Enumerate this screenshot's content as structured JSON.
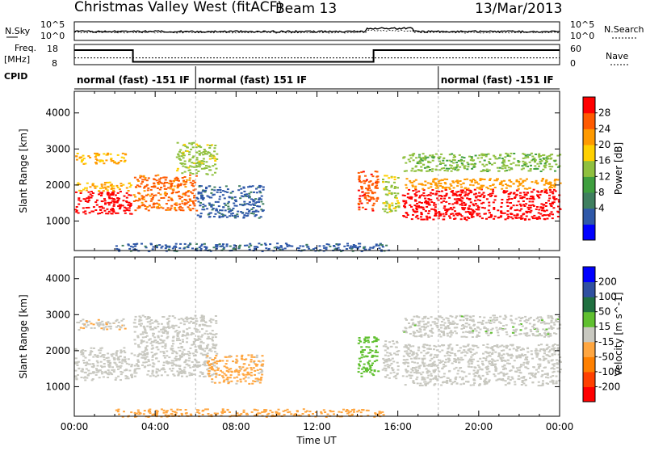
{
  "header": {
    "title": "Christmas Valley West (fitACF)",
    "beam": "Beam 13",
    "date": "13/Mar/2013"
  },
  "nsky_panel": {
    "left_label": "N.Sky",
    "right_label": "N.Search",
    "left_ticks": [
      "10^5",
      "10^0"
    ],
    "right_ticks": [
      "10^5",
      "10^0"
    ]
  },
  "freq_panel": {
    "left_label_1": "Freq.",
    "left_label_2": "[MHz]",
    "left_ticks": [
      "18",
      "8"
    ],
    "right_ticks": [
      "60",
      "0"
    ],
    "right_label": "Nave",
    "cpid_label": "CPID",
    "freq_steps": [
      {
        "t0": 0.0,
        "t1": 2.9,
        "mhz": 16.0
      },
      {
        "t0": 2.9,
        "t1": 14.8,
        "mhz": 10.2
      },
      {
        "t0": 14.8,
        "t1": 16.1,
        "mhz": 16.0
      },
      {
        "t0": 16.1,
        "t1": 24.0,
        "mhz": 16.0
      }
    ],
    "nave_level": 20
  },
  "cpid_segments": [
    {
      "label": "normal (fast) -151 IF",
      "t0": 0.0,
      "t1": 6.0
    },
    {
      "label": "normal (fast) 151 IF",
      "t0": 6.0,
      "t1": 18.0
    },
    {
      "label": "normal (fast) -151 IF",
      "t0": 18.0,
      "t1": 24.0
    }
  ],
  "chart_data": [
    {
      "type": "heatmap",
      "panel": "power",
      "ylabel": "Slant Range [km]",
      "xlabel": "Time UT",
      "xlim": [
        0,
        24
      ],
      "ylim": [
        180,
        4600
      ],
      "x_ticks": [
        "00:00",
        "04:00",
        "08:00",
        "12:00",
        "16:00",
        "20:00",
        "00:00"
      ],
      "y_ticks": [
        1000,
        2000,
        3000,
        4000
      ],
      "colorbar": {
        "label": "Power [dB]",
        "ticks": [
          "28",
          "24",
          "20",
          "16",
          "12",
          "8",
          "4"
        ],
        "range": [
          0,
          30
        ],
        "colors": [
          "#0000ff",
          "#2f58a8",
          "#3f7f5f",
          "#3f9f3f",
          "#8fc03f",
          "#ffd000",
          "#ff9a00",
          "#ff5a00",
          "#ff0000"
        ]
      },
      "regions": [
        {
          "t0": 0.0,
          "t1": 2.8,
          "r0": 1200,
          "r1": 1850,
          "level": 28
        },
        {
          "t0": 0.0,
          "t1": 2.8,
          "r0": 1850,
          "r1": 2100,
          "level": 20
        },
        {
          "t0": 2.9,
          "t1": 6.0,
          "r0": 1300,
          "r1": 2300,
          "level": 24
        },
        {
          "t0": 5.0,
          "t1": 7.0,
          "r0": 2300,
          "r1": 3200,
          "level": 16
        },
        {
          "t0": 0.0,
          "t1": 2.5,
          "r0": 2600,
          "r1": 2900,
          "level": 20
        },
        {
          "t0": 6.0,
          "t1": 9.3,
          "r0": 1100,
          "r1": 2000,
          "level": 6
        },
        {
          "t0": 14.0,
          "t1": 15.0,
          "r0": 1300,
          "r1": 2400,
          "level": 26
        },
        {
          "t0": 15.2,
          "t1": 16.0,
          "r0": 1250,
          "r1": 2300,
          "level": 16
        },
        {
          "t0": 16.2,
          "t1": 24.0,
          "r0": 1050,
          "r1": 1900,
          "level": 28
        },
        {
          "t0": 16.2,
          "t1": 24.0,
          "r0": 1900,
          "r1": 2200,
          "level": 22
        },
        {
          "t0": 16.2,
          "t1": 24.0,
          "r0": 2400,
          "r1": 2900,
          "level": 14
        },
        {
          "t0": 2.0,
          "t1": 15.5,
          "r0": 180,
          "r1": 400,
          "level": 6
        }
      ]
    },
    {
      "type": "heatmap",
      "panel": "velocity",
      "ylabel": "Slant Range [km]",
      "xlabel": "Time UT",
      "xlim": [
        0,
        24
      ],
      "ylim": [
        180,
        4600
      ],
      "x_ticks": [
        "00:00",
        "04:00",
        "08:00",
        "12:00",
        "16:00",
        "20:00",
        "00:00"
      ],
      "y_ticks": [
        1000,
        2000,
        3000,
        4000
      ],
      "colorbar": {
        "label": "Velocity [m s^-1]",
        "ticks": [
          "200",
          "100",
          "50",
          "15",
          "-15",
          "-50",
          "-100",
          "-200"
        ],
        "range": [
          -250,
          250
        ],
        "colors": [
          "#ff0000",
          "#ff4000",
          "#ff8000",
          "#ffa640",
          "#c8c8c0",
          "#60c030",
          "#207040",
          "#3050a0",
          "#0000ff"
        ]
      },
      "regions": [
        {
          "t0": 0.0,
          "t1": 2.8,
          "r0": 1200,
          "r1": 2100,
          "level": 0
        },
        {
          "t0": 2.9,
          "t1": 7.0,
          "r0": 1300,
          "r1": 3000,
          "level": 0
        },
        {
          "t0": 0.0,
          "t1": 2.5,
          "r0": 2600,
          "r1": 2900,
          "level": -20
        },
        {
          "t0": 6.5,
          "t1": 9.3,
          "r0": 1100,
          "r1": 1900,
          "level": -40
        },
        {
          "t0": 14.0,
          "t1": 15.0,
          "r0": 1300,
          "r1": 2400,
          "level": 60
        },
        {
          "t0": 15.2,
          "t1": 16.0,
          "r0": 1250,
          "r1": 2300,
          "level": 0
        },
        {
          "t0": 16.2,
          "t1": 24.0,
          "r0": 1050,
          "r1": 2200,
          "level": 0
        },
        {
          "t0": 16.2,
          "t1": 24.0,
          "r0": 2400,
          "r1": 3000,
          "level": 10
        },
        {
          "t0": 2.0,
          "t1": 15.5,
          "r0": 180,
          "r1": 400,
          "level": -60
        }
      ]
    }
  ]
}
